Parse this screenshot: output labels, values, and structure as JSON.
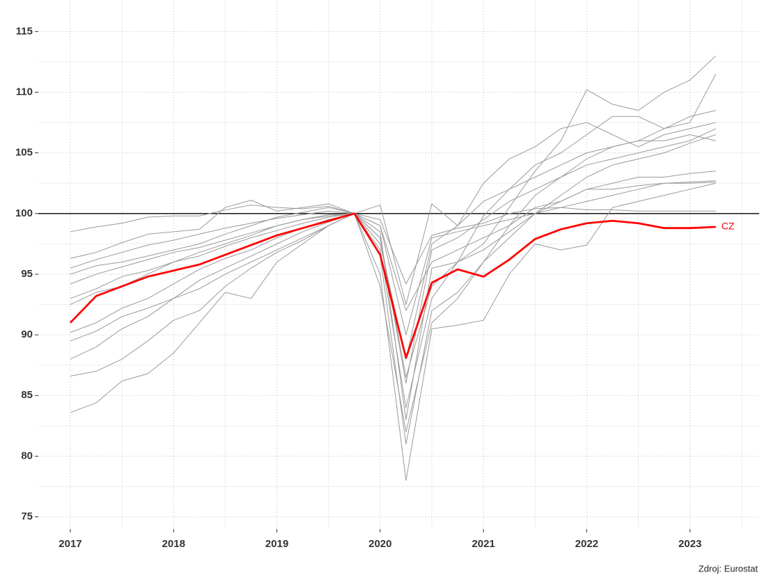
{
  "chart_data": {
    "type": "line",
    "x": [
      2017,
      2017.25,
      2017.5,
      2017.75,
      2018,
      2018.25,
      2018.5,
      2018.75,
      2019,
      2019.25,
      2019.5,
      2019.75,
      2020,
      2020.25,
      2020.5,
      2020.75,
      2021,
      2021.25,
      2021.5,
      2021.75,
      2022,
      2022.25,
      2022.5,
      2022.75,
      2023,
      2023.25
    ],
    "xlim": [
      2016.69,
      2023.67
    ],
    "xticks": [
      2017,
      2018,
      2019,
      2020,
      2021,
      2022,
      2023
    ],
    "ylim": [
      74,
      117.6
    ],
    "yticks": [
      75,
      80,
      85,
      90,
      95,
      100,
      105,
      110,
      115
    ],
    "grid": true,
    "hline": 100,
    "caption": "Zdroj: Eurostat",
    "series": [
      {
        "color": "#999999",
        "values": [
          83.6,
          84.4,
          86.2,
          86.8,
          88.5,
          91,
          93.5,
          93,
          96,
          97.5,
          99,
          100,
          95,
          78,
          90.5,
          90.8,
          91.2,
          95,
          97.5,
          97,
          97.4,
          100.5,
          101,
          101.5,
          102,
          102.5
        ]
      },
      {
        "color": "#999999",
        "values": [
          86.6,
          87,
          88,
          89.5,
          91.2,
          92,
          94,
          95.5,
          96.8,
          97.8,
          99,
          100,
          94,
          82,
          91,
          93,
          96,
          99,
          101.5,
          103,
          104,
          104.5,
          105,
          105.5,
          106,
          107
        ]
      },
      {
        "color": "#999999",
        "values": [
          88,
          89,
          90.5,
          91.5,
          93,
          94.5,
          95.5,
          96.5,
          97.5,
          98.5,
          99.3,
          100,
          97,
          84,
          93,
          96,
          97.5,
          100.5,
          103.5,
          106,
          110.2,
          109,
          108.5,
          110,
          111,
          113
        ]
      },
      {
        "color": "#999999",
        "values": [
          90.2,
          91,
          92.2,
          93,
          94.2,
          95.4,
          96.3,
          97,
          98,
          98.8,
          99.5,
          100,
          98,
          86,
          97,
          98,
          99.5,
          101,
          102,
          103,
          104.5,
          105.5,
          106,
          107,
          108,
          108.5
        ]
      },
      {
        "color": "#999999",
        "values": [
          92.5,
          93.5,
          94,
          95,
          96,
          96.5,
          97.3,
          98,
          98.6,
          99.2,
          99.7,
          100,
          99,
          90,
          98,
          98.5,
          99,
          99.5,
          100,
          100.5,
          101,
          101.5,
          102,
          102.5,
          102.6,
          102.7
        ]
      },
      {
        "color": "#999999",
        "values": [
          94.2,
          95,
          95.6,
          96.2,
          96.8,
          97.2,
          97.8,
          98.4,
          99,
          99.5,
          99.9,
          100,
          100.7,
          92.5,
          100.8,
          99,
          101,
          102,
          103,
          104,
          105,
          105.5,
          106,
          106,
          106.5,
          106
        ]
      },
      {
        "color": "#999999",
        "values": [
          95.5,
          96.2,
          96.8,
          97.4,
          97.8,
          98.3,
          98.8,
          99.2,
          99.6,
          99.9,
          100.2,
          100,
          99.5,
          94.2,
          98.2,
          98.8,
          99.2,
          100,
          100.4,
          100.5,
          100.3,
          100.3,
          100.2,
          100.2,
          100.2,
          100.2
        ]
      },
      {
        "color": "#999999",
        "values": [
          98.5,
          98.9,
          99.2,
          99.7,
          99.8,
          99.8,
          100.3,
          100.7,
          100.5,
          100.4,
          100.6,
          100,
          99,
          92,
          96,
          97,
          98,
          99,
          100.5,
          101,
          102,
          102.5,
          103,
          103,
          103.3,
          103.5
        ]
      },
      {
        "color": "#999999",
        "values": [
          96.3,
          96.8,
          97.6,
          98.3,
          98.5,
          98.7,
          100.5,
          101.1,
          100.2,
          100.5,
          100.8,
          100,
          97.5,
          88,
          97.5,
          99,
          102.5,
          104.5,
          105.5,
          107,
          107.5,
          106.5,
          105.5,
          106.5,
          107,
          107.5
        ]
      },
      {
        "color": "#999999",
        "values": [
          93,
          93.8,
          94.8,
          95.3,
          96,
          96.8,
          97.5,
          98.2,
          99,
          99.5,
          99.8,
          100,
          98.5,
          83,
          95.5,
          96,
          97,
          98.5,
          100,
          101,
          102,
          102,
          102.3,
          102.5,
          102.5,
          102.6
        ]
      },
      {
        "color": "#999999",
        "values": [
          89.5,
          90.3,
          91.5,
          92.2,
          93,
          93.8,
          95,
          96,
          97,
          98,
          99,
          100,
          96.5,
          81,
          92,
          93.5,
          96,
          98,
          100,
          101.5,
          103,
          104,
          104.5,
          105,
          105.8,
          106.5
        ]
      },
      {
        "color": "#999999",
        "values": [
          95,
          95.7,
          96,
          96.5,
          97,
          97.5,
          98.3,
          99,
          99.7,
          100.1,
          100.5,
          100,
          98,
          86.5,
          94,
          96,
          99.8,
          102,
          104,
          105,
          106.5,
          108,
          108,
          107,
          107.5,
          111.5
        ]
      },
      {
        "name": "CZ",
        "color": "#ff0000",
        "values": [
          91,
          93.2,
          94,
          94.8,
          95.3,
          95.8,
          96.6,
          97.4,
          98.2,
          98.8,
          99.4,
          100,
          96.6,
          88.1,
          94.3,
          95.4,
          94.8,
          96.2,
          97.9,
          98.7,
          99.2,
          99.4,
          99.2,
          98.8,
          98.8,
          98.9
        ]
      }
    ]
  }
}
